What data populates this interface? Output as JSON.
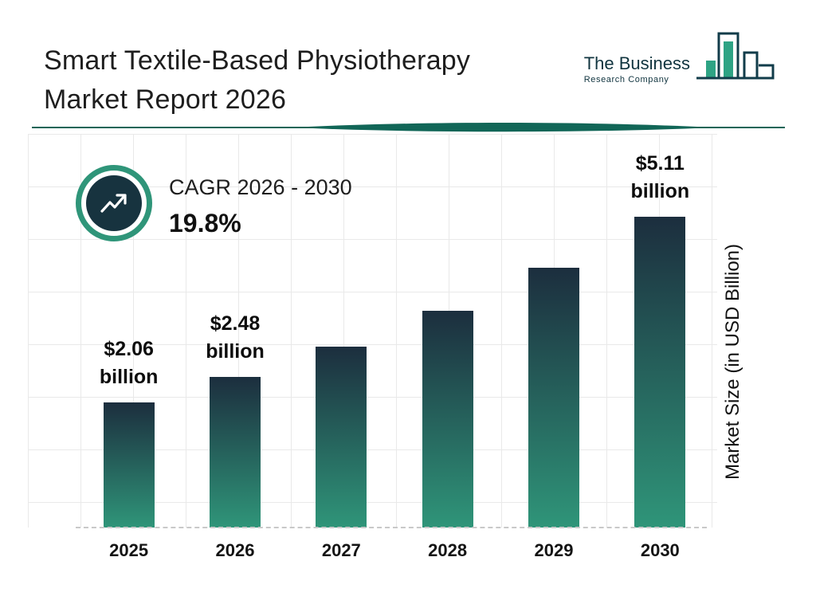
{
  "header": {
    "title": {
      "line1": "Smart Textile-Based Physiotherapy",
      "line2": "Market Report 2026"
    },
    "logo": {
      "name_top": "The Business",
      "name_bottom": "Research Company"
    }
  },
  "cagr_badge": {
    "label": "CAGR 2026 - 2030",
    "value": "19.8%"
  },
  "colors": {
    "bar_top": "#1c2e3e",
    "bar_bottom": "#2f9579",
    "accent_teal": "#2f9579",
    "badge_inner": "#17333f",
    "divider": "#116657",
    "logo_outline": "#113c4a",
    "logo_fill": "#2ea384"
  },
  "chart_data": {
    "type": "bar",
    "categories": [
      "2025",
      "2026",
      "2027",
      "2028",
      "2029",
      "2030"
    ],
    "values": [
      2.06,
      2.48,
      2.97,
      3.56,
      4.27,
      5.11
    ],
    "bar_labels": [
      {
        "index": 0,
        "line1": "$2.06",
        "line2": "billion"
      },
      {
        "index": 1,
        "line1": "$2.48",
        "line2": "billion"
      },
      {
        "index": 5,
        "line1": "$5.11",
        "line2": "billion"
      }
    ],
    "title": "Smart Textile-Based Physiotherapy Market Report 2026",
    "xlabel": "",
    "ylabel": "Market Size (in USD Billion)",
    "ylim": [
      0,
      5.5
    ],
    "grid": true,
    "legend": false
  }
}
